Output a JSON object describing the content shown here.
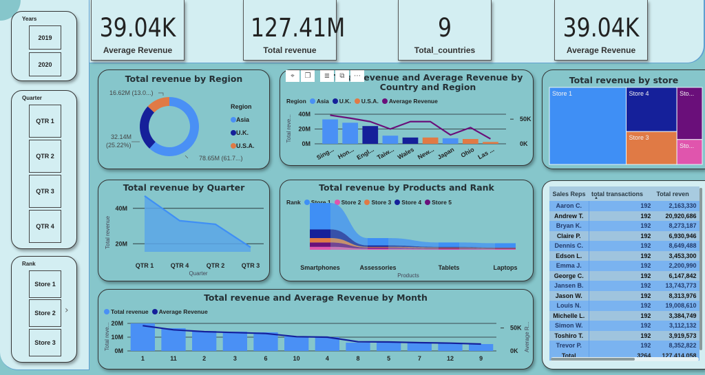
{
  "slicers": {
    "years": {
      "title": "Years",
      "options": [
        "2019",
        "2020"
      ]
    },
    "quarter": {
      "title": "Quarter",
      "options": [
        "QTR 1",
        "QTR 2",
        "QTR 3",
        "QTR 4"
      ]
    },
    "rank": {
      "title": "Rank",
      "options": [
        "Store 1",
        "Store 2",
        "Store 3"
      ],
      "more_icon": "chevron-right"
    }
  },
  "kpis": [
    {
      "value": "39.04K",
      "label": "Average Revenue"
    },
    {
      "value": "127.41M",
      "label": "Total revenue"
    },
    {
      "value": "9",
      "label": "Total_countries"
    },
    {
      "value": "39.04K",
      "label": "Average Revenue"
    }
  ],
  "visual_toolbar": [
    "pin-icon",
    "copy-icon",
    "filter-icon",
    "focus-mode-icon",
    "more-options-icon"
  ],
  "colors": {
    "asia": "#4a90f5",
    "uk": "#15209a",
    "usa": "#e07a45",
    "avg": "#6a0f7a",
    "store1": "#3f8ff5",
    "store2": "#e055ad",
    "store3": "#e07a45",
    "store4": "#15209a",
    "store5": "#6a0f7a",
    "month_line": "#15209a"
  },
  "chart_data": [
    {
      "id": "region",
      "type": "pie",
      "title": "Total revenue by Region",
      "legend_title": "Region",
      "legend_position": "right",
      "labels": [
        "Asia",
        "U.K.",
        "U.S.A."
      ],
      "values": [
        78.65,
        32.14,
        16.62
      ],
      "units": "M",
      "data_labels": [
        "78.65M (61.7...)",
        "32.14M (25.22%)",
        "16.62M (13.0...)"
      ]
    },
    {
      "id": "country",
      "type": "bar",
      "title": "Total revenue and Average Revenue by Country and Region",
      "legend_title": "Region",
      "legend": [
        "Asia",
        "U.K.",
        "U.S.A.",
        "Average Revenue"
      ],
      "categories": [
        "Sing...",
        "Hon...",
        "Engl...",
        "Taiw...",
        "Wales",
        "New...",
        "Japan",
        "Ohio",
        "Las ..."
      ],
      "regions": [
        "Asia",
        "Asia",
        "U.K.",
        "Asia",
        "U.K.",
        "U.S.A.",
        "Asia",
        "U.S.A.",
        "U.S.A."
      ],
      "series": [
        {
          "name": "Total revenue",
          "values": [
            33,
            28.5,
            24,
            11,
            8.5,
            8.5,
            7.5,
            6.5,
            2.5
          ]
        },
        {
          "name": "Average Revenue",
          "axis": "right",
          "values": [
            58,
            52,
            45,
            30,
            45,
            45,
            18,
            33,
            10
          ]
        }
      ],
      "ylabel": "Total reve...",
      "ylim": [
        0,
        40
      ],
      "yticks": [
        "0M",
        "20M",
        "40M"
      ],
      "y2label": "Average R...",
      "y2lim": [
        0,
        60
      ],
      "y2ticks": [
        "0K",
        "50K"
      ]
    },
    {
      "id": "store",
      "type": "heatmap",
      "subtype": "treemap",
      "title": "Total revenue by store",
      "labels": [
        "Store 1",
        "Store 4",
        "Store 3",
        "Sto...",
        "Sto..."
      ],
      "stores": [
        "Store 1",
        "Store 4",
        "Store 3",
        "Store 5",
        "Store 2"
      ],
      "values": [
        51.5,
        19.5,
        14.5,
        11.5,
        5.5
      ]
    },
    {
      "id": "quarter",
      "type": "area",
      "title": "Total revenue by Quarter",
      "categories": [
        "QTR 1",
        "QTR 4",
        "QTR 2",
        "QTR 3"
      ],
      "values": [
        47,
        33,
        31,
        18
      ],
      "xlabel": "Quarter",
      "ylabel": "Total revenue",
      "ylim": [
        10,
        50
      ],
      "yticks": [
        "20M",
        "40M"
      ]
    },
    {
      "id": "products",
      "type": "area",
      "subtype": "ribbon",
      "title": "Total revenue by Products and Rank",
      "legend_title": "Rank",
      "legend": [
        "Store 1",
        "Store 2",
        "Store 3",
        "Store 4",
        "Store 5"
      ],
      "categories": [
        "Smartphones",
        "Assessories",
        "Tablets",
        "Laptops"
      ],
      "xlabel": "Products",
      "series": [
        {
          "name": "Store 2",
          "values": [
            2,
            0.8,
            0.5,
            0.5
          ]
        },
        {
          "name": "Store 5",
          "values": [
            5,
            1.5,
            1,
            0.8
          ]
        },
        {
          "name": "Store 3",
          "values": [
            8,
            2,
            1.5,
            1.2
          ]
        },
        {
          "name": "Store 4",
          "values": [
            14,
            3,
            2,
            1.5
          ]
        },
        {
          "name": "Store 1",
          "values": [
            32,
            8,
            5,
            4.5
          ]
        }
      ]
    },
    {
      "id": "month",
      "type": "bar",
      "title": "Total revenue and Average Revenue by Month",
      "legend": [
        "Total revenue",
        "Average Revenue"
      ],
      "categories": [
        "1",
        "11",
        "2",
        "3",
        "6",
        "10",
        "4",
        "8",
        "5",
        "7",
        "12",
        "9"
      ],
      "series": [
        {
          "name": "Total revenue",
          "values": [
            20,
            16.5,
            14.5,
            14,
            13.5,
            10.5,
            10,
            6,
            6.5,
            6,
            5.5,
            5
          ]
        },
        {
          "name": "Average Revenue",
          "axis": "right",
          "values": [
            55,
            46,
            42,
            40,
            38,
            31,
            30,
            20,
            19.5,
            18,
            17,
            15
          ]
        }
      ],
      "ylabel": "Total reve...",
      "ylim": [
        0,
        20
      ],
      "yticks": [
        "0M",
        "10M",
        "20M"
      ],
      "y2label": "Average R...",
      "y2lim": [
        0,
        60
      ],
      "y2ticks": [
        "0K",
        "50K"
      ]
    }
  ],
  "table": {
    "columns": [
      "Sales Reps",
      "total transactions",
      "Total reven"
    ],
    "sort_icon": "sort-ascending",
    "rows": [
      [
        "Aaron C.",
        "192",
        "2,163,330"
      ],
      [
        "Andrew T.",
        "192",
        "20,920,686"
      ],
      [
        "Bryan K.",
        "192",
        "8,273,187"
      ],
      [
        "Claire P.",
        "192",
        "6,930,946"
      ],
      [
        "Dennis C.",
        "192",
        "8,649,488"
      ],
      [
        "Edson L.",
        "192",
        "3,453,300"
      ],
      [
        "Emma J.",
        "192",
        "2,200,990"
      ],
      [
        "George C.",
        "192",
        "6,147,842"
      ],
      [
        "Jansen B.",
        "192",
        "13,743,773"
      ],
      [
        "Jason W.",
        "192",
        "8,313,976"
      ],
      [
        "Louis N.",
        "192",
        "19,008,610"
      ],
      [
        "Michelle L.",
        "192",
        "3,384,749"
      ],
      [
        "Simon W.",
        "192",
        "3,112,132"
      ],
      [
        "Toshiro T.",
        "192",
        "3,919,573"
      ],
      [
        "Trevor P.",
        "192",
        "8,352,822"
      ]
    ],
    "total": [
      "Total",
      "3264",
      "127,414,058"
    ]
  }
}
